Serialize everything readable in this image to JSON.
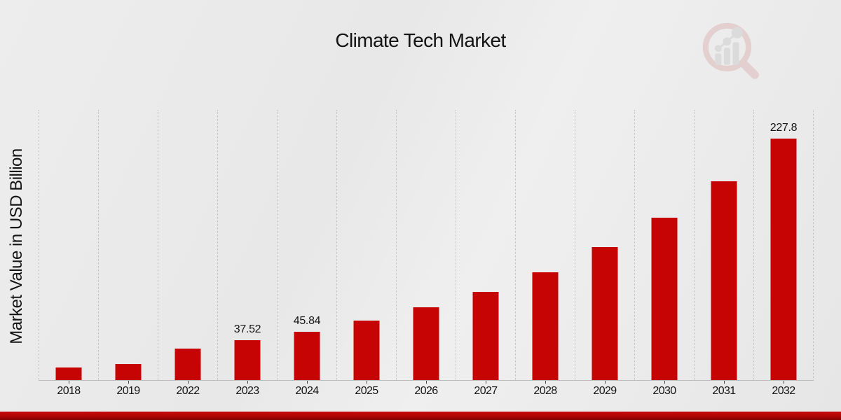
{
  "title": "Climate Tech Market",
  "y_axis_label": "Market Value in USD Billion",
  "watermark_icon": "magnifier-bar-chart-logo",
  "colors": {
    "bar": "#c60404",
    "background": "#e9e9e9",
    "gridline": "#c2c2c2",
    "axis_line": "#bdbdbd",
    "text": "#141414",
    "footer_stripe_top": "#c70909",
    "footer_stripe_bottom": "#800101",
    "watermark_pink": "#d29090",
    "watermark_gray": "#b5b5ba"
  },
  "chart_data": {
    "type": "bar",
    "title": "Climate Tech Market",
    "ylabel": "Market Value in USD Billion",
    "xlabel": "",
    "categories": [
      "2018",
      "2019",
      "2022",
      "2023",
      "2024",
      "2025",
      "2026",
      "2027",
      "2028",
      "2029",
      "2030",
      "2031",
      "2032"
    ],
    "values": [
      11.8,
      15.4,
      29.6,
      37.52,
      45.84,
      56.0,
      68.4,
      83.5,
      102.0,
      125.5,
      153.5,
      187.9,
      227.8
    ],
    "bar_value_labels": {
      "2023": "37.52",
      "2024": "45.84",
      "2032": "227.8"
    },
    "ylim": [
      0,
      255
    ],
    "grid": "vertical-dotted-between-categories",
    "legend": "none"
  }
}
